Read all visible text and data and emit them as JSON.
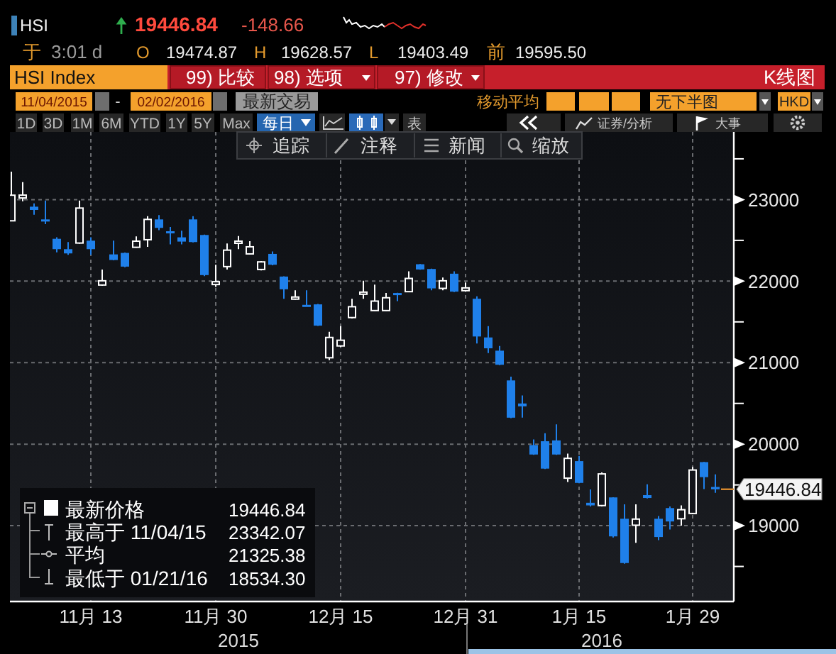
{
  "chart_data": {
    "type": "candlestick",
    "title": "HSI",
    "categories": [
      null,
      null,
      null,
      null,
      null,
      null,
      null,
      "11月 13",
      null,
      null,
      null,
      null,
      null,
      null,
      null,
      null,
      null,
      null,
      "11月 30",
      null,
      null,
      null,
      null,
      null,
      null,
      null,
      null,
      null,
      null,
      "12月 15",
      null,
      null,
      null,
      null,
      null,
      null,
      null,
      null,
      null,
      null,
      "12月 31",
      null,
      null,
      null,
      null,
      null,
      null,
      null,
      null,
      null,
      "1月 15",
      null,
      null,
      null,
      null,
      null,
      null,
      null,
      null,
      null,
      "1月 29",
      null,
      null
    ],
    "ohlc": [
      [
        22740,
        23342.07,
        22735,
        23054
      ],
      [
        23020,
        23215,
        22980,
        23055
      ],
      [
        22913,
        22954,
        22815,
        22873
      ],
      [
        22757,
        22988,
        22699,
        22740
      ],
      [
        22519,
        22537,
        22352,
        22392
      ],
      [
        22392,
        22479,
        22323,
        22340
      ],
      [
        22467,
        22988,
        22460,
        22896
      ],
      [
        22496,
        22537,
        22323,
        22392
      ],
      [
        21952,
        22143,
        21945,
        22004
      ],
      [
        22328,
        22496,
        22255,
        22259
      ],
      [
        22346,
        22350,
        22170,
        22178
      ],
      [
        22415,
        22548,
        22410,
        22490
      ],
      [
        22508,
        22797,
        22421,
        22757
      ],
      [
        22757,
        22809,
        22624,
        22653
      ],
      [
        22612,
        22664,
        22450,
        22595
      ],
      [
        22537,
        22618,
        22450,
        22485
      ],
      [
        22757,
        22797,
        22475,
        22479
      ],
      [
        22566,
        22570,
        22062,
        22074
      ],
      [
        21958,
        22201,
        21929,
        21993
      ],
      [
        22178,
        22462,
        22143,
        22380
      ],
      [
        22479,
        22554,
        22392,
        22490
      ],
      [
        22334,
        22490,
        22330,
        22421
      ],
      [
        22143,
        22247,
        22132,
        22236
      ],
      [
        22334,
        22363,
        22195,
        22201
      ],
      [
        22056,
        22060,
        21784,
        21900
      ],
      [
        21790,
        21888,
        21773,
        21805
      ],
      [
        21709,
        21888,
        21690,
        21697
      ],
      [
        21715,
        21720,
        21450,
        21454
      ],
      [
        21060,
        21379,
        21031,
        21309
      ],
      [
        21205,
        21448,
        21194,
        21275
      ],
      [
        21553,
        21784,
        21541,
        21686
      ],
      [
        21860,
        22004,
        21784,
        21865
      ],
      [
        21639,
        21958,
        21635,
        21755
      ],
      [
        21639,
        21854,
        21635,
        21796
      ],
      [
        21854,
        21858,
        21755,
        21830
      ],
      [
        21871,
        22120,
        21865,
        22033
      ],
      [
        22207,
        22210,
        22140,
        22143
      ],
      [
        22149,
        22152,
        21888,
        21911
      ],
      [
        21911,
        22045,
        21888,
        22004
      ],
      [
        22091,
        22120,
        21865,
        21871
      ],
      [
        21883,
        21981,
        21871,
        21917
      ],
      [
        21784,
        21813,
        21234,
        21321
      ],
      [
        21309,
        21448,
        21118,
        21176
      ],
      [
        21147,
        21205,
        20970,
        20974
      ],
      [
        20782,
        20829,
        20320,
        20325
      ],
      [
        20499,
        20597,
        20325,
        20464
      ],
      [
        19989,
        20059,
        19870,
        19873
      ],
      [
        20036,
        20134,
        19695,
        19700
      ],
      [
        20046,
        20243,
        19870,
        19873
      ],
      [
        19583,
        19884,
        19537,
        19826
      ],
      [
        19792,
        19855,
        19520,
        19525
      ],
      [
        19281,
        19445,
        19235,
        19249
      ],
      [
        19247,
        19653,
        19235,
        19635
      ],
      [
        19347,
        19350,
        18856,
        18869
      ],
      [
        19085,
        19262,
        18534.3,
        18542
      ],
      [
        19006,
        19262,
        18791,
        19081
      ],
      [
        19375,
        19508,
        19334,
        19340
      ],
      [
        19085,
        19118,
        18823,
        18861
      ],
      [
        19216,
        19235,
        18954,
        19052
      ],
      [
        19085,
        19249,
        19000,
        19196
      ],
      [
        19150,
        19722,
        19140,
        19683
      ],
      [
        19780,
        19782,
        19450,
        19595.5
      ],
      [
        19474.87,
        19628.57,
        19403.49,
        19446.84
      ]
    ],
    "colors": [
      "#ffffff",
      "#ffffff",
      "#1f80ea",
      "#1f80ea",
      "#1f80ea",
      "#1f80ea",
      "#ffffff",
      "#1f80ea",
      "#ffffff",
      "#1f80ea",
      "#1f80ea",
      "#ffffff",
      "#ffffff",
      "#1f80ea",
      "#1f80ea",
      "#1f80ea",
      "#1f80ea",
      "#1f80ea",
      "#ffffff",
      "#ffffff",
      "#ffffff",
      "#ffffff",
      "#ffffff",
      "#1f80ea",
      "#1f80ea",
      "#ffffff",
      "#1f80ea",
      "#1f80ea",
      "#ffffff",
      "#ffffff",
      "#ffffff",
      "#ffffff",
      "#ffffff",
      "#ffffff",
      "#1f80ea",
      "#ffffff",
      "#1f80ea",
      "#1f80ea",
      "#ffffff",
      "#1f80ea",
      "#ffffff",
      "#1f80ea",
      "#1f80ea",
      "#1f80ea",
      "#1f80ea",
      "#1f80ea",
      "#1f80ea",
      "#1f80ea",
      "#1f80ea",
      "#ffffff",
      "#1f80ea",
      "#1f80ea",
      "#ffffff",
      "#1f80ea",
      "#1f80ea",
      "#ffffff",
      "#1f80ea",
      "#1f80ea",
      "#1f80ea",
      "#ffffff",
      "#ffffff",
      "#1f80ea",
      "#1f80ea"
    ],
    "ylim": [
      18070,
      23830
    ],
    "yticks": [
      {
        "value": 18500,
        "label": null
      },
      19000,
      {
        "value": 19500,
        "label": null
      },
      20000,
      {
        "value": 20500,
        "label": null
      },
      21000,
      {
        "value": 21500,
        "label": null
      },
      22000,
      {
        "value": 22500,
        "label": null
      },
      23000,
      {
        "value": 23500,
        "label": null
      }
    ],
    "grid": true,
    "annotations": [
      "19446.84",
      "-148.66",
      "于",
      "3:01 d",
      "O",
      "19474.87",
      "H",
      "19628.57",
      "L",
      "19403.49",
      "前",
      "19595.50",
      "HSI Index",
      "99) 比较",
      "98) 选项",
      "97) 修改",
      "K线图",
      "11/04/2015",
      "-",
      "02/02/2016",
      "最新交易",
      "移动平均",
      "无下半图",
      "HKD",
      "1D",
      "3D",
      "1M",
      "6M",
      "YTD",
      "1Y",
      "5Y",
      "Max",
      "每日",
      "表",
      "证券/分析",
      "大事",
      "追踪",
      "注释",
      "新闻",
      "缩放",
      "最新价格",
      "19446.84",
      "最高于 11/04/15",
      "23342.07",
      "平均",
      "21325.38",
      "最低于 01/21/16",
      "18534.30",
      "2015",
      "2016",
      "19446.84"
    ]
  }
}
